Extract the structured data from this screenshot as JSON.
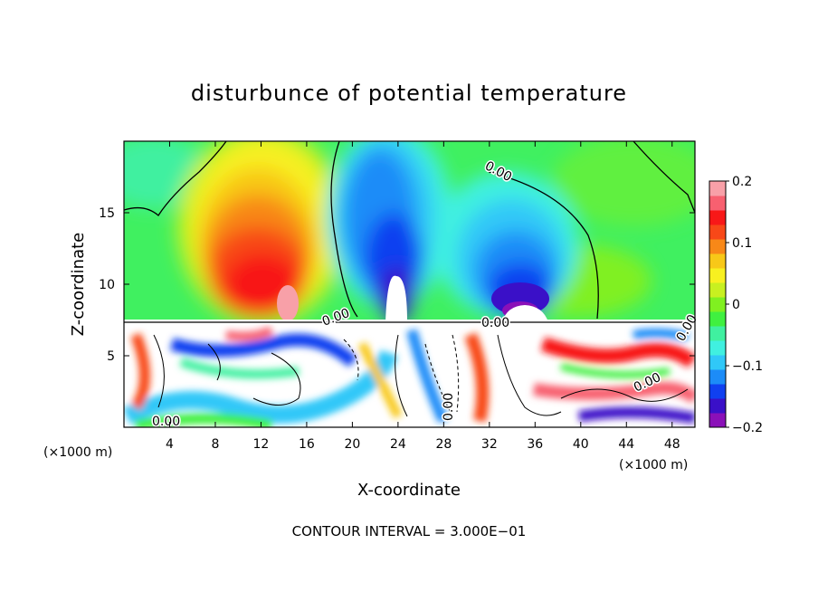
{
  "chart_data": {
    "type": "heatmap",
    "title": "disturbunce of potential temperature",
    "xlabel": "X-coordinate",
    "ylabel": "Z-coordinate",
    "x_unit_left": "(×1000 m)",
    "x_unit_right": "(×1000 m)",
    "xlim": [
      0,
      50
    ],
    "ylim": [
      0,
      20
    ],
    "x_ticks": [
      4,
      8,
      12,
      16,
      20,
      24,
      28,
      32,
      36,
      40,
      44,
      48
    ],
    "y_ticks": [
      5,
      10,
      15
    ],
    "colorbar": {
      "range": [
        -0.2,
        0.2
      ],
      "tick_values": [
        0.2,
        0.1,
        0,
        -0.1,
        -0.2
      ],
      "tick_labels": [
        "0.2",
        "0.1",
        "0",
        "−0.1",
        "−0.2"
      ],
      "colors": [
        "#8a10b8",
        "#3a10c8",
        "#1040f0",
        "#1c8cf8",
        "#30c8f8",
        "#40f0e0",
        "#40f0a0",
        "#40f040",
        "#80f020",
        "#c8f020",
        "#f8f020",
        "#f8c818",
        "#f88818",
        "#f84818",
        "#f81818",
        "#f86070",
        "#f8a0a8"
      ]
    },
    "contour_labels": [
      "0.00",
      "0.00",
      "0.00",
      "0.00",
      "0.00",
      "0.00",
      "0.00"
    ],
    "footer": "CONTOUR INTERVAL = 3.000E−01"
  }
}
